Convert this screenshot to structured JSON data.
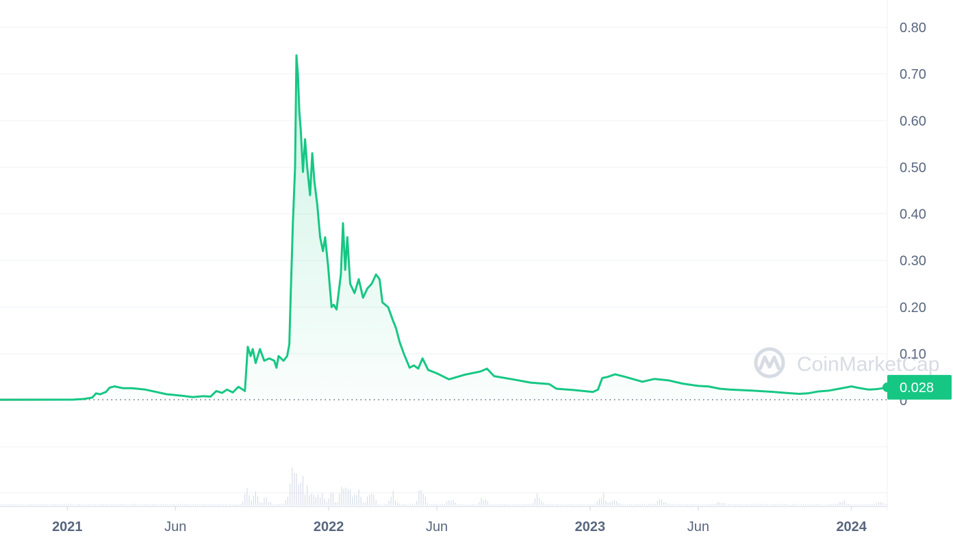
{
  "watermark": {
    "text": "CoinMarketCap",
    "icon": "coinmarketcap-logo-icon"
  },
  "price_badge": {
    "label": "0.028"
  },
  "colors": {
    "price_up": "#16c784",
    "price_down": "#ea3943",
    "area_fill_top": "#16c784",
    "grid": "#eff2f5",
    "axis_text": "#58667e",
    "volume": "#cfd6e4",
    "badge_bg": "#16c784"
  },
  "chart_data": {
    "type": "line",
    "title": "",
    "xlabel": "",
    "ylabel": "",
    "ylim": [
      0,
      0.8
    ],
    "yticks": [
      {
        "value": 0.8,
        "label": "0.80"
      },
      {
        "value": 0.7,
        "label": "0.70"
      },
      {
        "value": 0.6,
        "label": "0.60"
      },
      {
        "value": 0.5,
        "label": "0.50"
      },
      {
        "value": 0.4,
        "label": "0.40"
      },
      {
        "value": 0.3,
        "label": "0.30"
      },
      {
        "value": 0.2,
        "label": "0.20"
      },
      {
        "value": 0.1,
        "label": "0.10"
      },
      {
        "value": 0,
        "label": "0"
      }
    ],
    "xticks": [
      {
        "date": "2021-01-01",
        "label": "2021",
        "bold": true
      },
      {
        "date": "2021-06-01",
        "label": "Jun",
        "bold": false
      },
      {
        "date": "2022-01-01",
        "label": "2022",
        "bold": true
      },
      {
        "date": "2022-06-01",
        "label": "Jun",
        "bold": false
      },
      {
        "date": "2023-01-01",
        "label": "2023",
        "bold": true
      },
      {
        "date": "2023-06-01",
        "label": "Jun",
        "bold": false
      },
      {
        "date": "2024-01-01",
        "label": "2024",
        "bold": true
      }
    ],
    "xlim": [
      "2020-09-29",
      "2024-02-20"
    ],
    "baseline_value": 0.0013,
    "current_value": 0.028,
    "series": [
      {
        "type": "line",
        "points": [
          [
            "2020-09-29",
            0.0013
          ],
          [
            "2020-12-28",
            0.0014
          ],
          [
            "2021-01-08",
            0.0014
          ],
          [
            "2021-01-14",
            0.002
          ],
          [
            "2021-01-24",
            0.003
          ],
          [
            "2021-02-05",
            0.006
          ],
          [
            "2021-02-10",
            0.015
          ],
          [
            "2021-02-16",
            0.013
          ],
          [
            "2021-02-24",
            0.018
          ],
          [
            "2021-03-01",
            0.027
          ],
          [
            "2021-03-08",
            0.03
          ],
          [
            "2021-03-20",
            0.026
          ],
          [
            "2021-04-01",
            0.026
          ],
          [
            "2021-04-20",
            0.023
          ],
          [
            "2021-05-05",
            0.018
          ],
          [
            "2021-05-20",
            0.013
          ],
          [
            "2021-06-10",
            0.01
          ],
          [
            "2021-06-25",
            0.007
          ],
          [
            "2021-07-10",
            0.009
          ],
          [
            "2021-07-20",
            0.008
          ],
          [
            "2021-07-28",
            0.02
          ],
          [
            "2021-08-05",
            0.016
          ],
          [
            "2021-08-12",
            0.023
          ],
          [
            "2021-08-20",
            0.017
          ],
          [
            "2021-08-28",
            0.029
          ],
          [
            "2021-09-03",
            0.023
          ],
          [
            "2021-09-06",
            0.02
          ],
          [
            "2021-09-10",
            0.115
          ],
          [
            "2021-09-14",
            0.095
          ],
          [
            "2021-09-17",
            0.11
          ],
          [
            "2021-09-21",
            0.08
          ],
          [
            "2021-09-27",
            0.11
          ],
          [
            "2021-10-03",
            0.085
          ],
          [
            "2021-10-10",
            0.09
          ],
          [
            "2021-10-17",
            0.085
          ],
          [
            "2021-10-20",
            0.07
          ],
          [
            "2021-10-23",
            0.095
          ],
          [
            "2021-10-30",
            0.085
          ],
          [
            "2021-11-04",
            0.095
          ],
          [
            "2021-11-07",
            0.12
          ],
          [
            "2021-11-09",
            0.23
          ],
          [
            "2021-11-12",
            0.38
          ],
          [
            "2021-11-15",
            0.5
          ],
          [
            "2021-11-17",
            0.74
          ],
          [
            "2021-11-19",
            0.7
          ],
          [
            "2021-11-21",
            0.62
          ],
          [
            "2021-11-23",
            0.58
          ],
          [
            "2021-11-26",
            0.49
          ],
          [
            "2021-11-29",
            0.56
          ],
          [
            "2021-12-02",
            0.5
          ],
          [
            "2021-12-06",
            0.44
          ],
          [
            "2021-12-09",
            0.53
          ],
          [
            "2021-12-12",
            0.47
          ],
          [
            "2021-12-16",
            0.42
          ],
          [
            "2021-12-20",
            0.35
          ],
          [
            "2021-12-24",
            0.32
          ],
          [
            "2021-12-27",
            0.35
          ],
          [
            "2021-12-31",
            0.29
          ],
          [
            "2022-01-05",
            0.2
          ],
          [
            "2022-01-08",
            0.205
          ],
          [
            "2022-01-12",
            0.195
          ],
          [
            "2022-01-18",
            0.27
          ],
          [
            "2022-01-21",
            0.38
          ],
          [
            "2022-01-24",
            0.28
          ],
          [
            "2022-01-27",
            0.35
          ],
          [
            "2022-01-31",
            0.25
          ],
          [
            "2022-02-06",
            0.23
          ],
          [
            "2022-02-12",
            0.26
          ],
          [
            "2022-02-18",
            0.22
          ],
          [
            "2022-02-24",
            0.24
          ],
          [
            "2022-03-02",
            0.25
          ],
          [
            "2022-03-08",
            0.27
          ],
          [
            "2022-03-13",
            0.26
          ],
          [
            "2022-03-17",
            0.21
          ],
          [
            "2022-03-25",
            0.2
          ],
          [
            "2022-04-01",
            0.17
          ],
          [
            "2022-04-05",
            0.155
          ],
          [
            "2022-04-10",
            0.125
          ],
          [
            "2022-04-16",
            0.1
          ],
          [
            "2022-04-20",
            0.085
          ],
          [
            "2022-04-24",
            0.07
          ],
          [
            "2022-04-30",
            0.075
          ],
          [
            "2022-05-06",
            0.068
          ],
          [
            "2022-05-12",
            0.09
          ],
          [
            "2022-05-20",
            0.065
          ],
          [
            "2022-06-01",
            0.058
          ],
          [
            "2022-06-18",
            0.045
          ],
          [
            "2022-07-10",
            0.055
          ],
          [
            "2022-08-01",
            0.062
          ],
          [
            "2022-08-10",
            0.068
          ],
          [
            "2022-08-20",
            0.052
          ],
          [
            "2022-09-15",
            0.045
          ],
          [
            "2022-10-10",
            0.038
          ],
          [
            "2022-11-05",
            0.035
          ],
          [
            "2022-11-15",
            0.025
          ],
          [
            "2022-12-10",
            0.022
          ],
          [
            "2022-12-30",
            0.019
          ],
          [
            "2023-01-05",
            0.018
          ],
          [
            "2023-01-12",
            0.023
          ],
          [
            "2023-01-18",
            0.048
          ],
          [
            "2023-01-25",
            0.05
          ],
          [
            "2023-02-05",
            0.056
          ],
          [
            "2023-02-20",
            0.05
          ],
          [
            "2023-03-15",
            0.04
          ],
          [
            "2023-04-01",
            0.046
          ],
          [
            "2023-04-20",
            0.043
          ],
          [
            "2023-05-10",
            0.036
          ],
          [
            "2023-06-01",
            0.031
          ],
          [
            "2023-06-15",
            0.03
          ],
          [
            "2023-07-01",
            0.025
          ],
          [
            "2023-07-15",
            0.023
          ],
          [
            "2023-08-15",
            0.021
          ],
          [
            "2023-09-15",
            0.018
          ],
          [
            "2023-10-01",
            0.016
          ],
          [
            "2023-10-20",
            0.014
          ],
          [
            "2023-11-01",
            0.015
          ],
          [
            "2023-11-15",
            0.019
          ],
          [
            "2023-12-01",
            0.021
          ],
          [
            "2023-12-15",
            0.025
          ],
          [
            "2024-01-01",
            0.03
          ],
          [
            "2024-01-10",
            0.027
          ],
          [
            "2024-01-25",
            0.023
          ],
          [
            "2024-02-05",
            0.024
          ],
          [
            "2024-02-14",
            0.026
          ],
          [
            "2024-02-20",
            0.028
          ]
        ]
      }
    ],
    "volume": {
      "ylim": [
        0,
        1
      ],
      "points": [
        [
          "2021-09-10",
          0.28
        ],
        [
          "2021-09-20",
          0.22
        ],
        [
          "2021-10-05",
          0.14
        ],
        [
          "2021-11-10",
          0.55
        ],
        [
          "2021-11-14",
          0.75
        ],
        [
          "2021-11-17",
          1.0
        ],
        [
          "2021-11-20",
          0.6
        ],
        [
          "2021-11-25",
          0.45
        ],
        [
          "2021-12-01",
          0.35
        ],
        [
          "2021-12-08",
          0.3
        ],
        [
          "2021-12-20",
          0.25
        ],
        [
          "2022-01-05",
          0.2
        ],
        [
          "2022-01-22",
          0.45
        ],
        [
          "2022-01-28",
          0.35
        ],
        [
          "2022-02-10",
          0.28
        ],
        [
          "2022-03-01",
          0.25
        ],
        [
          "2022-04-01",
          0.2
        ],
        [
          "2022-05-10",
          0.32
        ],
        [
          "2022-06-20",
          0.12
        ],
        [
          "2022-08-05",
          0.16
        ],
        [
          "2022-10-20",
          0.18
        ],
        [
          "2023-01-18",
          0.22
        ],
        [
          "2023-02-05",
          0.14
        ],
        [
          "2023-04-10",
          0.12
        ],
        [
          "2023-07-01",
          0.08
        ],
        [
          "2023-12-20",
          0.1
        ],
        [
          "2024-02-10",
          0.06
        ]
      ]
    }
  }
}
